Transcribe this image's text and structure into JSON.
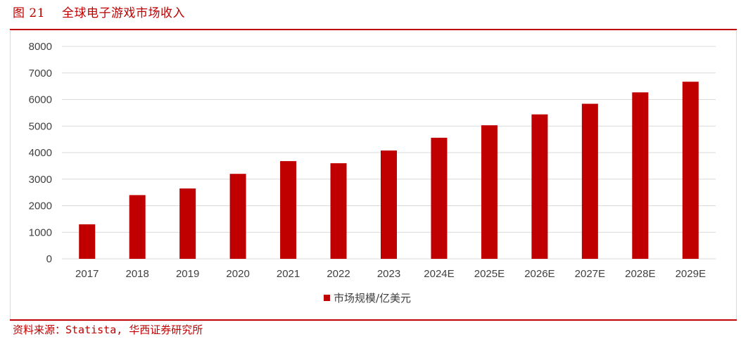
{
  "figure": {
    "number": "图 21",
    "title": "全球电子游戏市场收入",
    "source": "资料来源：Statista, 华西证券研究所"
  },
  "colors": {
    "accent": "#c00000",
    "bar": "#c00000",
    "grid": "#d9d9d9",
    "text": "#404040"
  },
  "chart_data": {
    "type": "bar",
    "title": "",
    "xlabel": "",
    "ylabel": "",
    "categories": [
      "2017",
      "2018",
      "2019",
      "2020",
      "2021",
      "2022",
      "2023",
      "2024E",
      "2025E",
      "2026E",
      "2027E",
      "2028E",
      "2029E"
    ],
    "series": [
      {
        "name": "市场规模/亿美元",
        "values": [
          1300,
          2400,
          2650,
          3200,
          3680,
          3600,
          4080,
          4560,
          5030,
          5440,
          5840,
          6270,
          6670
        ]
      }
    ],
    "ylim": [
      0,
      8000
    ],
    "yticks": [
      0,
      1000,
      2000,
      3000,
      4000,
      5000,
      6000,
      7000,
      8000
    ],
    "grid": true,
    "legend_position": "bottom"
  }
}
